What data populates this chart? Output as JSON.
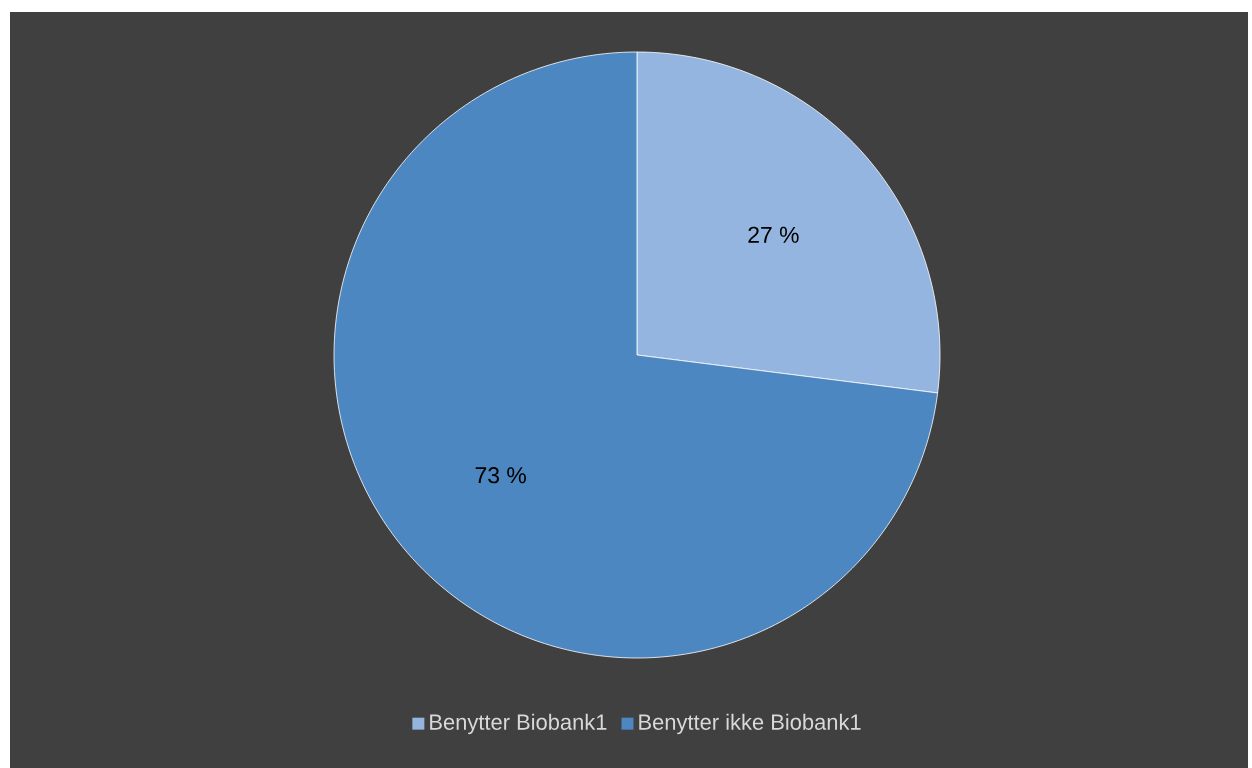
{
  "chart_data": {
    "type": "pie",
    "categories": [
      "Benytter Biobank1",
      "Benytter ikke Biobank1"
    ],
    "values": [
      27,
      73
    ],
    "colors": [
      "#93b5e0",
      "#4c87c2"
    ],
    "value_labels": [
      "27 %",
      "73 %"
    ],
    "legend": "bottom"
  }
}
